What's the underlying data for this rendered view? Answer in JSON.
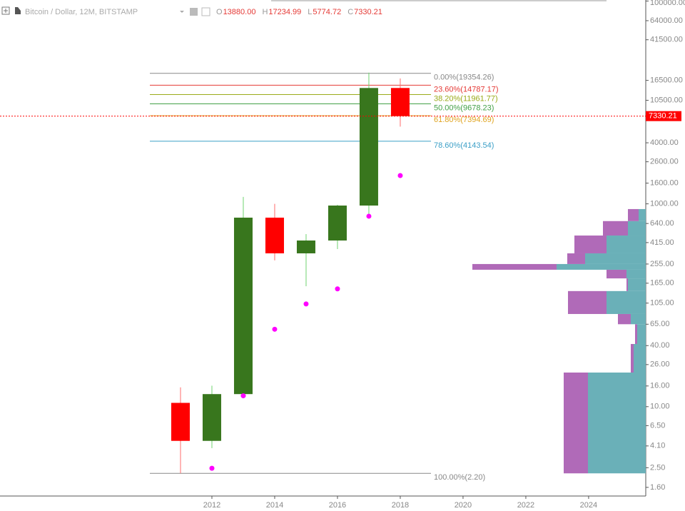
{
  "chart_data": {
    "type": "candlestick",
    "title": "Bitcoin / Dollar, 12M, BITSTAMP",
    "header": [
      {
        "key": "O",
        "value": 13880,
        "label": "13880.00"
      },
      {
        "key": "H",
        "value": 17234.99,
        "label": "17234.99"
      },
      {
        "key": "L",
        "value": 5774.72,
        "label": "5774.72"
      },
      {
        "key": "C",
        "value": 7330.21,
        "label": "7330.21"
      }
    ],
    "x": [
      2011,
      2012,
      2013,
      2014,
      2015,
      2016,
      2017,
      2018
    ],
    "open": [
      10.9,
      4.6,
      13.3,
      731,
      325,
      435,
      962,
      13880
    ],
    "high": [
      15.5,
      16.1,
      1170,
      1000,
      503,
      980,
      19666,
      17234.99
    ],
    "low": [
      2.2,
      3.9,
      13.3,
      277,
      154,
      358,
      767,
      5774.72
    ],
    "close": [
      4.6,
      13.3,
      731,
      325,
      435,
      962,
      13880,
      7330.21
    ],
    "up_color": "#38761d",
    "down_color": "#ff0000",
    "sar": {
      "color": "#ff00ff",
      "x": [
        2012,
        2013,
        2014,
        2015,
        2016,
        2017,
        2018
      ],
      "values": [
        2.47,
        12.8,
        58,
        103,
        145,
        755,
        1900
      ]
    },
    "fib_levels": [
      {
        "label": "0.00%(19354.26)",
        "value": 19354.26,
        "color": "#888888"
      },
      {
        "label": "23.60%(14787.17)",
        "value": 14787.17,
        "color": "#e53935"
      },
      {
        "label": "38.20%(11961.77)",
        "value": 11961.77,
        "color": "#9aab1a"
      },
      {
        "label": "50.00%(9678.23)",
        "value": 9678.23,
        "color": "#43a047"
      },
      {
        "label": "61.80%(7394.69)",
        "value": 7394.69,
        "color": "#e0a420"
      },
      {
        "label": "78.60%(4143.54)",
        "value": 4143.54,
        "color": "#3b9fc7"
      },
      {
        "label": "100.00%(2.20)",
        "value": 2.2,
        "color": "#888888"
      }
    ],
    "volume_profile": {
      "bins": [
        2.2,
        21.7,
        41.5,
        65,
        82,
        138,
        184,
        224,
        255,
        325,
        487,
        676,
        888
      ],
      "teal": [
        81,
        17,
        12,
        21,
        55,
        25,
        27,
        125,
        85,
        55,
        25,
        10
      ],
      "purple": [
        34,
        4,
        3,
        18,
        54,
        2,
        28,
        118,
        25,
        45,
        35,
        15
      ],
      "teal_color": "#6ab0b8",
      "purple_color": "#b06ab8"
    },
    "log_scale": true,
    "xlim": [
      2005.25,
      2025.82
    ],
    "xticks": [
      2012,
      2014,
      2016,
      2018,
      2020,
      2022,
      2024
    ],
    "ylim": [
      1.315,
      102350
    ],
    "yticks": [
      {
        "value": 100000,
        "label": "100000.00"
      },
      {
        "value": 64000,
        "label": "64000.00"
      },
      {
        "value": 41500,
        "label": "41500.00"
      },
      {
        "value": 16500,
        "label": "16500.00"
      },
      {
        "value": 10500,
        "label": "10500.00"
      },
      {
        "value": 4000,
        "label": "4000.00"
      },
      {
        "value": 2600,
        "label": "2600.00"
      },
      {
        "value": 1600,
        "label": "1600.00"
      },
      {
        "value": 1000,
        "label": "1000.00"
      },
      {
        "value": 640,
        "label": "640.00"
      },
      {
        "value": 415,
        "label": "415.00"
      },
      {
        "value": 255,
        "label": "255.00"
      },
      {
        "value": 165,
        "label": "165.00"
      },
      {
        "value": 105,
        "label": "105.00"
      },
      {
        "value": 65,
        "label": "65.00"
      },
      {
        "value": 40,
        "label": "40.00"
      },
      {
        "value": 26,
        "label": "26.00"
      },
      {
        "value": 16,
        "label": "16.00"
      },
      {
        "value": 10,
        "label": "10.00"
      },
      {
        "value": 6.5,
        "label": "6.50"
      },
      {
        "value": 4.1,
        "label": "4.10"
      },
      {
        "value": 2.5,
        "label": "2.50"
      },
      {
        "value": 1.6,
        "label": "1.60"
      }
    ]
  }
}
